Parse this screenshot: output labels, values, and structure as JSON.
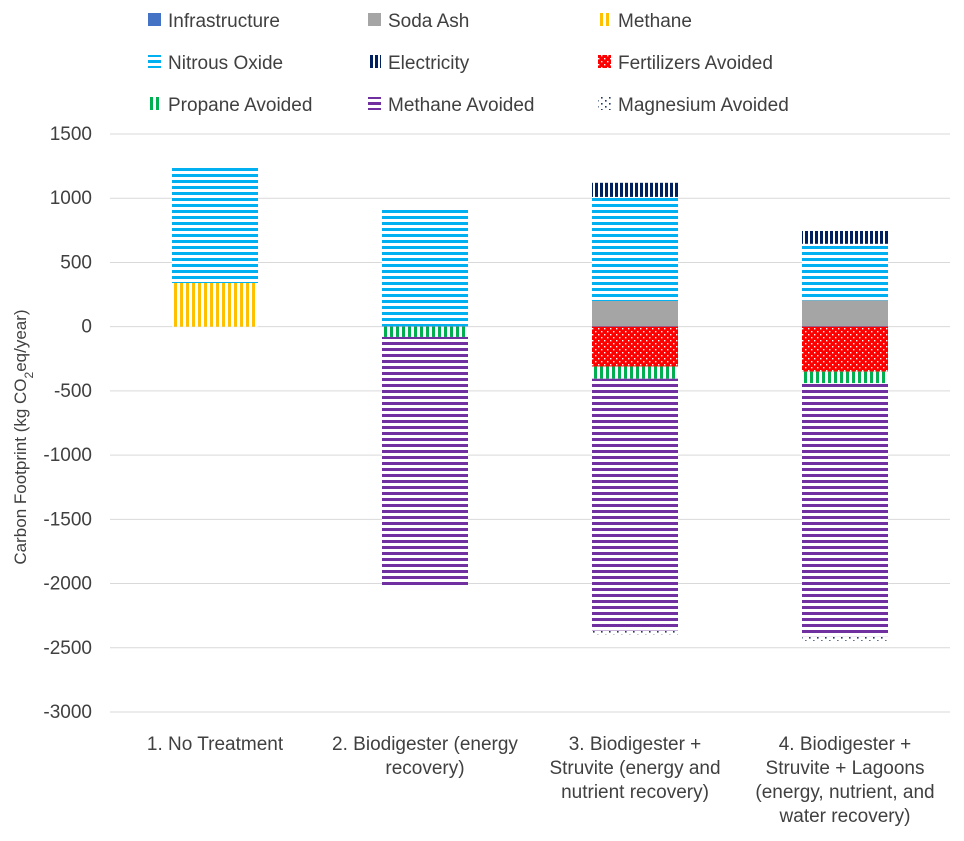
{
  "chart_data": {
    "type": "bar",
    "stacked": true,
    "title": "",
    "xlabel": "",
    "ylabel": "Carbon Footprint (kg CO2eq/year)",
    "ylim": [
      -3000,
      1500
    ],
    "yticks": [
      1500,
      1000,
      500,
      0,
      -500,
      -1000,
      -1500,
      -2000,
      -2500,
      -3000
    ],
    "grid": true,
    "legend_position": "top",
    "categories": [
      [
        "1. No Treatment"
      ],
      [
        "2. Biodigester (energy",
        "recovery)"
      ],
      [
        "3. Biodigester +",
        "Struvite (energy and",
        "nutrient recovery)"
      ],
      [
        "4. Biodigester +",
        "Struvite + Lagoons",
        "(energy, nutrient, and",
        "water recovery)"
      ]
    ],
    "series": [
      {
        "name": "Infrastructure",
        "color": "#4472C4",
        "pattern": "solid",
        "values": [
          0,
          5,
          5,
          5
        ]
      },
      {
        "name": "Soda Ash",
        "color": "#A5A5A5",
        "pattern": "solid",
        "values": [
          0,
          0,
          195,
          200
        ]
      },
      {
        "name": "Methane",
        "color": "#FFC000",
        "pattern": "vertical",
        "values": [
          340,
          0,
          0,
          0
        ]
      },
      {
        "name": "Nitrous Oxide",
        "color": "#00B0F0",
        "pattern": "horizontal",
        "values": [
          915,
          915,
          810,
          440
        ]
      },
      {
        "name": "Electricity",
        "color": "#002060",
        "pattern": "vertical-dense",
        "values": [
          0,
          0,
          110,
          100
        ]
      },
      {
        "name": "Fertilizers Avoided",
        "color": "#FF0000",
        "pattern": "dots",
        "values": [
          0,
          0,
          -310,
          -350
        ]
      },
      {
        "name": "Propane Avoided",
        "color": "#00B050",
        "pattern": "vertical",
        "values": [
          0,
          -80,
          -95,
          -90
        ]
      },
      {
        "name": "Methane Avoided",
        "color": "#7030A0",
        "pattern": "horizontal",
        "values": [
          0,
          -1950,
          -1960,
          -1970
        ]
      },
      {
        "name": "Magnesium Avoided",
        "color": "#203864",
        "pattern": "sparse-dots",
        "values": [
          0,
          0,
          -30,
          -35
        ]
      }
    ]
  }
}
